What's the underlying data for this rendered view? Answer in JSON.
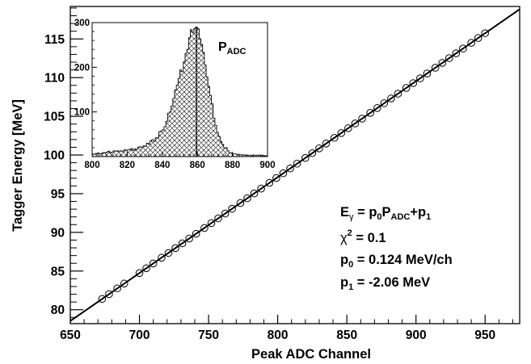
{
  "chart_data": [
    {
      "type": "scatter",
      "xlabel": "Peak ADC Channel",
      "ylabel": "Tagger Energy [MeV]",
      "xlim": [
        650,
        975
      ],
      "ylim": [
        78.2,
        119.2
      ],
      "x_ticks": [
        650,
        700,
        750,
        800,
        850,
        900,
        950
      ],
      "x_tick_labels": [
        "650",
        "700",
        "750",
        "800",
        "850",
        "900",
        "950"
      ],
      "y_ticks": [
        80,
        85,
        90,
        95,
        100,
        105,
        110,
        115
      ],
      "y_tick_labels": [
        "80",
        "85",
        "90",
        "95",
        "100",
        "105",
        "110",
        "115"
      ],
      "grid": false,
      "series": [
        {
          "marker": "open-circle",
          "x": [
            673,
            678,
            684,
            689,
            700,
            705,
            710,
            716,
            721,
            726,
            731,
            736,
            741,
            747,
            752,
            757,
            762,
            767,
            773,
            778,
            783,
            788,
            794,
            799,
            804,
            809,
            814,
            820,
            825,
            830,
            835,
            841,
            846,
            851,
            856,
            861,
            867,
            872,
            877,
            882,
            887,
            893,
            898,
            903,
            908,
            914,
            919,
            924,
            929,
            934,
            940,
            945,
            950
          ],
          "y": [
            81.39,
            82.01,
            82.76,
            83.38,
            84.74,
            85.36,
            85.98,
            86.72,
            87.34,
            87.96,
            88.58,
            89.2,
            89.82,
            90.57,
            91.19,
            91.81,
            92.43,
            93.05,
            93.79,
            94.41,
            95.03,
            95.65,
            96.4,
            97.02,
            97.64,
            98.26,
            98.88,
            99.62,
            100.24,
            100.86,
            101.48,
            102.22,
            102.84,
            103.46,
            104.08,
            104.7,
            105.45,
            106.07,
            106.69,
            107.31,
            107.93,
            108.67,
            109.29,
            109.91,
            110.53,
            111.28,
            111.9,
            112.52,
            113.14,
            113.76,
            114.5,
            115.12,
            115.74
          ]
        }
      ],
      "fit_line": {
        "slope": 0.124,
        "intercept": -2.06,
        "x_range": [
          650,
          975
        ]
      },
      "annotations": {
        "formula_E": "E",
        "formula_E_sub": "γ",
        "formula_eq1": " = p",
        "formula_p0_sub": "0",
        "formula_P": "P",
        "formula_ADC_sub": "ADC",
        "formula_plus": "+p",
        "formula_p1_sub": "1",
        "chi_symbol": "χ",
        "chi_sup": "2",
        "chi_value": " = 0.1",
        "p0_name": "p",
        "p0_sub": "0",
        "p0_value": " = 0.124 MeV/ch",
        "p1_name": "p",
        "p1_sub": "1",
        "p1_value": " = -2.06 MeV"
      }
    },
    {
      "type": "histogram",
      "inset": true,
      "xlim": [
        800,
        900
      ],
      "ylim": [
        0,
        300
      ],
      "x_ticks": [
        800,
        820,
        840,
        860,
        880,
        900
      ],
      "x_tick_labels": [
        "800",
        "820",
        "840",
        "860",
        "880",
        "900"
      ],
      "y_ticks": [
        100,
        200,
        300
      ],
      "y_tick_labels": [
        "100",
        "200",
        "300"
      ],
      "fill": "crosshatch",
      "bin_width": 1,
      "bin_start": 800,
      "values": [
        6,
        5,
        7,
        8,
        6,
        7,
        9,
        8,
        10,
        12,
        8,
        10,
        13,
        12,
        13,
        11,
        13,
        11,
        15,
        14,
        15,
        16,
        18,
        14,
        17,
        16,
        21,
        22,
        20,
        24,
        23,
        30,
        28,
        35,
        38,
        34,
        42,
        42,
        56,
        57,
        60,
        67,
        79,
        97,
        100,
        113,
        130,
        149,
        160,
        175,
        194,
        190,
        212,
        231,
        240,
        266,
        284,
        278,
        287,
        290,
        286,
        264,
        251,
        233,
        205,
        178,
        157,
        137,
        118,
        86,
        70,
        54,
        45,
        34,
        27,
        19,
        20,
        13,
        8,
        8,
        6,
        6,
        5,
        5,
        4,
        4,
        4,
        3,
        3,
        3,
        3,
        2,
        3,
        3,
        3,
        3,
        2,
        3,
        2,
        2
      ],
      "marker_x": 859.5,
      "marker_label": "P",
      "marker_label_sub": "ADC"
    }
  ]
}
